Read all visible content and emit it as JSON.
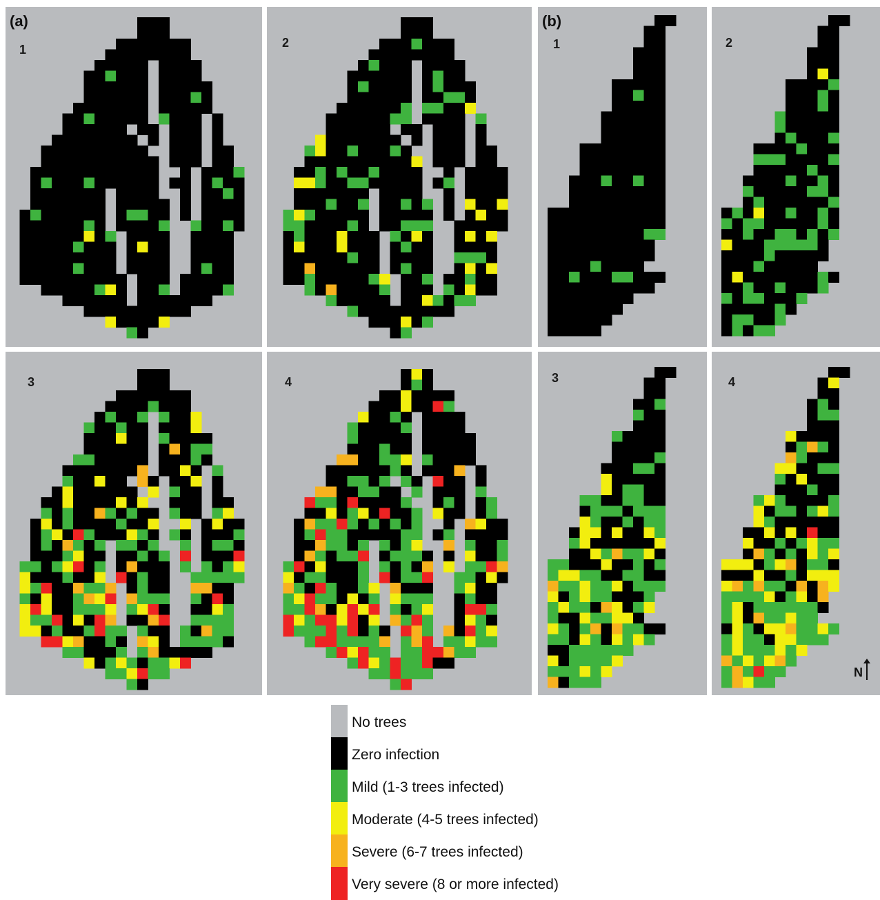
{
  "colors": {
    "background": "#b9bbbe",
    "no_trees": "#b9bbbe",
    "zero": "#000000",
    "mild": "#3fb33f",
    "moderate": "#f2ee0f",
    "severe": "#f7b21e",
    "very_severe": "#ee2323"
  },
  "groups": [
    {
      "label": "(a)",
      "panels": [
        "1",
        "2",
        "3",
        "4"
      ]
    },
    {
      "label": "(b)",
      "panels": [
        "1",
        "2",
        "3",
        "4"
      ]
    }
  ],
  "north_label": "N",
  "legend": [
    {
      "key": "no_trees",
      "label": "No trees"
    },
    {
      "key": "zero",
      "label": "Zero infection"
    },
    {
      "key": "mild",
      "label": "Mild (1-3 trees infected)"
    },
    {
      "key": "moderate",
      "label": "Moderate (4-5 trees infected)"
    },
    {
      "key": "severe",
      "label": "Severe (6-7 trees infected)"
    },
    {
      "key": "very_severe",
      "label": "Very severe (8 or more infected)"
    }
  ]
}
